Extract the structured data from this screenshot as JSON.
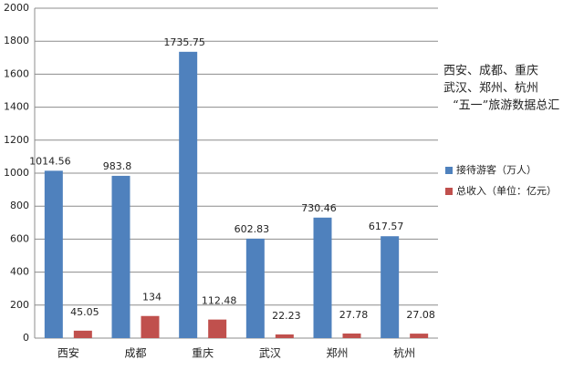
{
  "chart_data": {
    "type": "bar",
    "title": [
      "西安、成都、重庆",
      "武汉、郑州、杭州",
      "“五一”旅游数据总汇"
    ],
    "categories": [
      "西安",
      "成都",
      "重庆",
      "武汉",
      "郑州",
      "杭州"
    ],
    "series": [
      {
        "name": "接待游客（万人）",
        "color": "#4f81bd",
        "values": [
          1014.56,
          983.8,
          1735.75,
          602.83,
          730.46,
          617.57
        ]
      },
      {
        "name": "总收入（单位：亿元）",
        "color": "#c0504d",
        "values": [
          45.05,
          134,
          112.48,
          22.23,
          27.78,
          27.08
        ]
      }
    ],
    "ylim": [
      0,
      2000
    ],
    "yticks": [
      0,
      200,
      400,
      600,
      800,
      1000,
      1200,
      1400,
      1600,
      1800,
      2000
    ],
    "grid": true,
    "legend": "right"
  }
}
